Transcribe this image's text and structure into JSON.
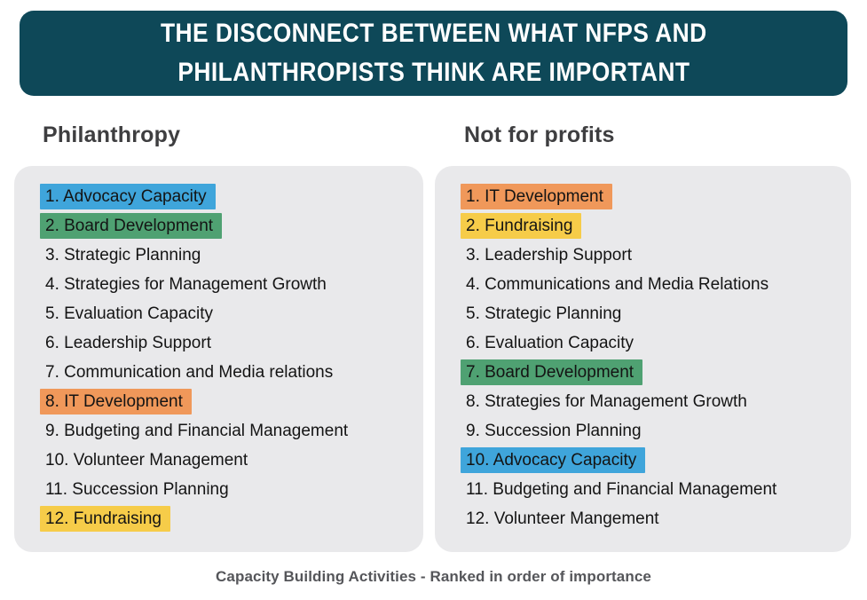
{
  "title": {
    "line1": "THE DISCONNECT BETWEEN WHAT NFPS AND",
    "line2": "PHILANTHROPISTS THINK ARE IMPORTANT"
  },
  "caption": "Capacity Building Activities - Ranked in order of importance",
  "colors": {
    "banner_bg": "#0E4858",
    "banner_text": "#FFFFFF",
    "panel_bg": "#E9E9EB",
    "header_text": "#3E3E40",
    "list_text": "#141414",
    "caption_text": "#55565A",
    "blue": "#3FA5DB",
    "green": "#4FA172",
    "orange": "#F0985A",
    "yellow": "#F6CC49"
  },
  "columns": [
    {
      "header": "Philanthropy",
      "items": [
        {
          "rank": "1.",
          "label": "Advocacy Capacity",
          "highlight": "blue"
        },
        {
          "rank": "2.",
          "label": "Board Development",
          "highlight": "green"
        },
        {
          "rank": "3.",
          "label": "Strategic Planning",
          "highlight": null
        },
        {
          "rank": "4.",
          "label": "Strategies for Management Growth",
          "highlight": null
        },
        {
          "rank": "5.",
          "label": "Evaluation Capacity",
          "highlight": null
        },
        {
          "rank": "6.",
          "label": "Leadership Support",
          "highlight": null
        },
        {
          "rank": "7.",
          "label": "Communication and Media relations",
          "highlight": null
        },
        {
          "rank": "8.",
          "label": "IT Development",
          "highlight": "orange"
        },
        {
          "rank": "9.",
          "label": "Budgeting and Financial Management",
          "highlight": null
        },
        {
          "rank": "10.",
          "label": "Volunteer Management",
          "highlight": null
        },
        {
          "rank": "11.",
          "label": "Succession Planning",
          "highlight": null
        },
        {
          "rank": "12.",
          "label": "Fundraising",
          "highlight": "yellow"
        }
      ]
    },
    {
      "header": "Not for profits",
      "items": [
        {
          "rank": "1.",
          "label": "IT Development",
          "highlight": "orange"
        },
        {
          "rank": "2.",
          "label": "Fundraising",
          "highlight": "yellow"
        },
        {
          "rank": "3.",
          "label": "Leadership Support",
          "highlight": null
        },
        {
          "rank": "4.",
          "label": "Communications and Media Relations",
          "highlight": null
        },
        {
          "rank": "5.",
          "label": "Strategic Planning",
          "highlight": null
        },
        {
          "rank": "6.",
          "label": "Evaluation Capacity",
          "highlight": null
        },
        {
          "rank": "7.",
          "label": "Board Development",
          "highlight": "green"
        },
        {
          "rank": "8.",
          "label": "Strategies for Management Growth",
          "highlight": null
        },
        {
          "rank": "9.",
          "label": "Succession Planning",
          "highlight": null
        },
        {
          "rank": "10.",
          "label": "Advocacy Capacity",
          "highlight": "blue"
        },
        {
          "rank": "11.",
          "label": "Budgeting and Financial Management",
          "highlight": null
        },
        {
          "rank": "12.",
          "label": "Volunteer Mangement",
          "highlight": null
        }
      ]
    }
  ]
}
